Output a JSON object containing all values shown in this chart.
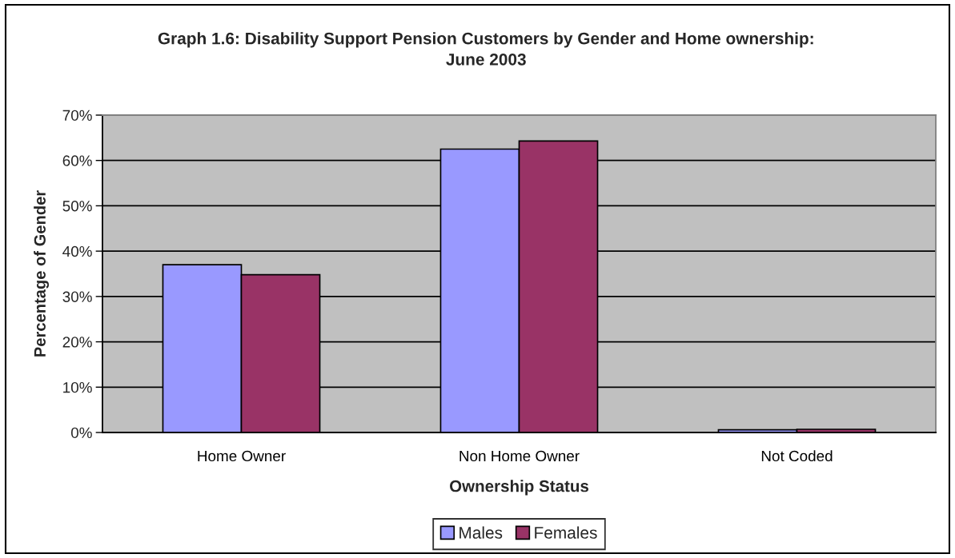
{
  "chart_data": {
    "type": "bar",
    "title": "Graph 1.6: Disability Support Pension Customers by Gender and Home ownership:\nJune 2003",
    "xlabel": "Ownership Status",
    "ylabel": "Percentage of Gender",
    "categories": [
      "Home Owner",
      "Non Home Owner",
      "Not Coded"
    ],
    "series": [
      {
        "name": "Males",
        "color": "#9999ff",
        "values": [
          37.0,
          62.5,
          0.6
        ]
      },
      {
        "name": "Females",
        "color": "#993366",
        "values": [
          34.8,
          64.3,
          0.7
        ]
      }
    ],
    "ylim": [
      0,
      70
    ],
    "yticks": [
      {
        "value": 0,
        "label": "0%"
      },
      {
        "value": 10,
        "label": "10%"
      },
      {
        "value": 20,
        "label": "20%"
      },
      {
        "value": 30,
        "label": "30%"
      },
      {
        "value": 40,
        "label": "40%"
      },
      {
        "value": 50,
        "label": "50%"
      },
      {
        "value": 60,
        "label": "60%"
      },
      {
        "value": 70,
        "label": "70%"
      }
    ],
    "grid": "y",
    "legend": "bottom"
  }
}
